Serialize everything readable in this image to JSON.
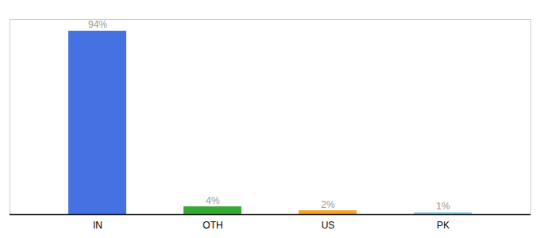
{
  "chart_data": {
    "type": "bar",
    "categories": [
      "IN",
      "OTH",
      "US",
      "PK"
    ],
    "values": [
      94,
      4,
      2,
      1
    ],
    "value_labels": [
      "94%",
      "4%",
      "2%",
      "1%"
    ],
    "data_labels": true,
    "colors": [
      "#4472e3",
      "#33aa33",
      "#f5a623",
      "#87ceeb"
    ],
    "ylim": [
      0,
      100
    ],
    "tick_labels": "x"
  }
}
